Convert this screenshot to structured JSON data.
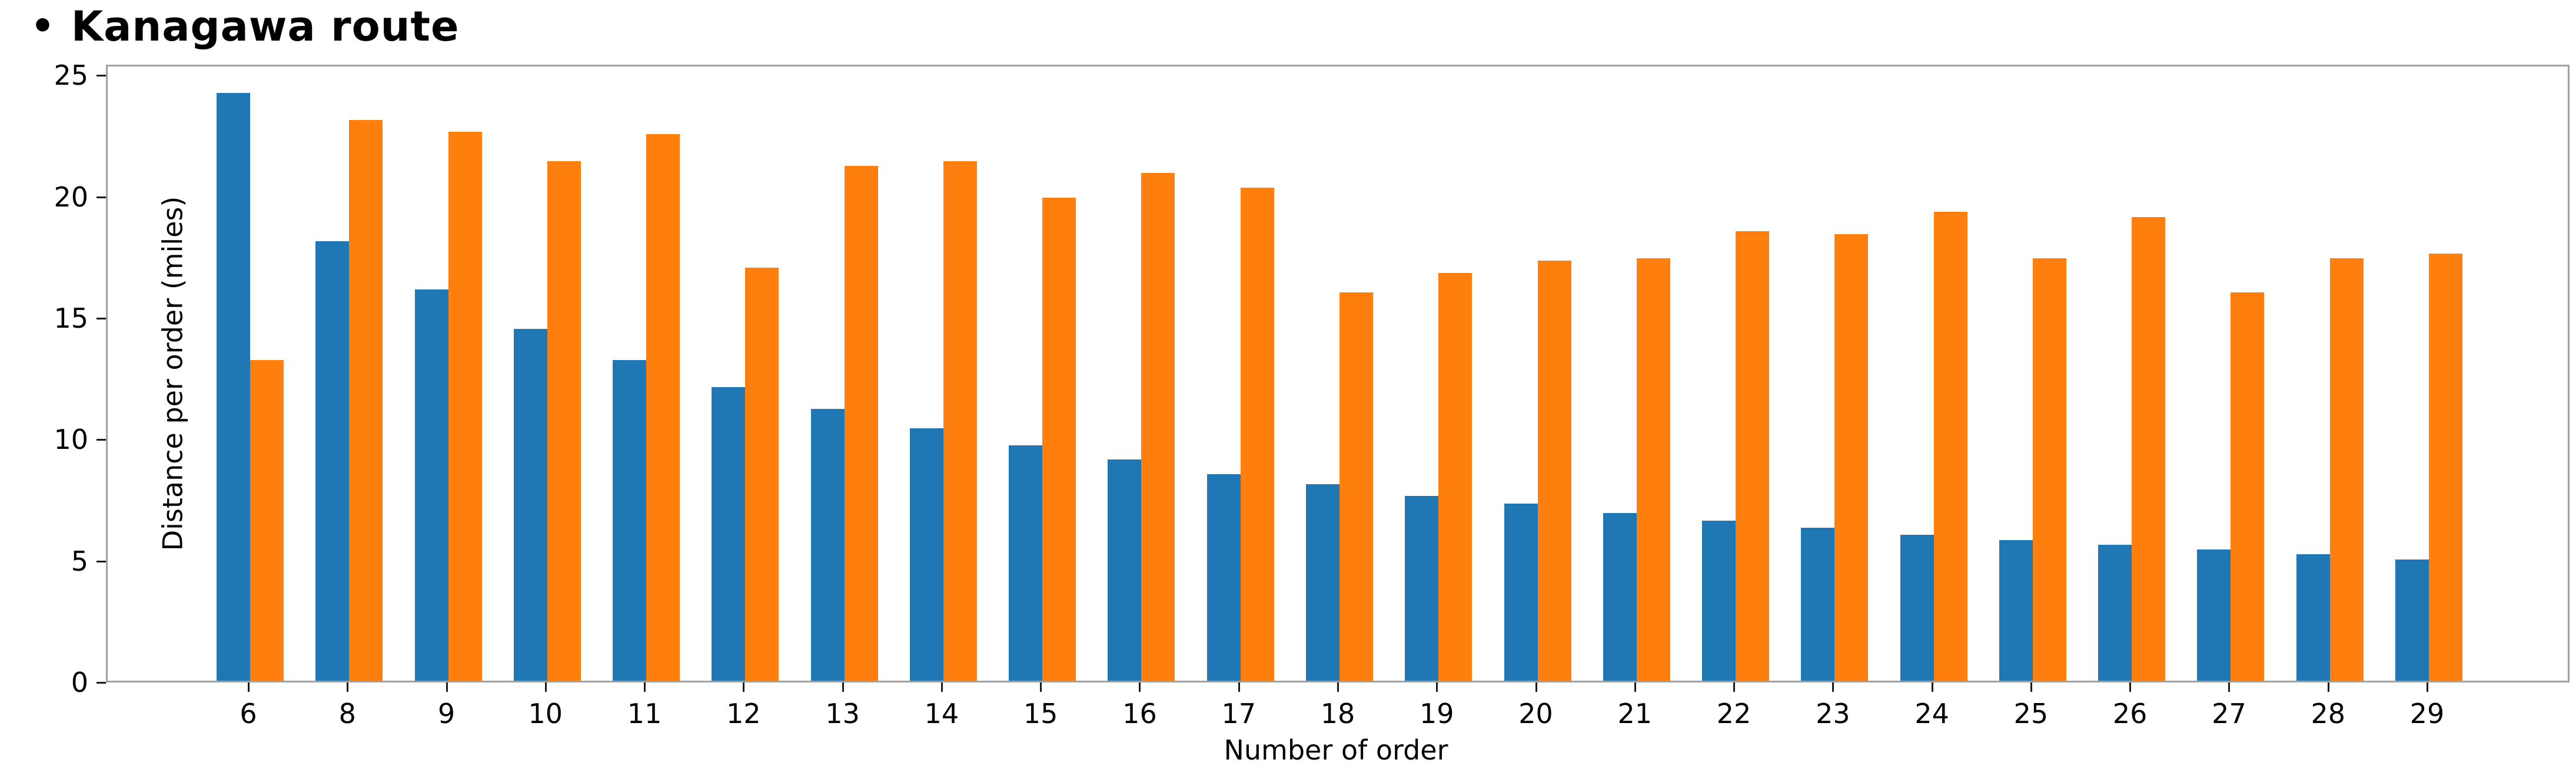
{
  "title": {
    "bullet": "•",
    "text": "Kanagawa route"
  },
  "colors": {
    "blue": "#1f77b4",
    "orange": "#ff7f0e",
    "spine": "#a0a0a0",
    "tick": "#1a1a1a"
  },
  "chart_data": {
    "type": "bar",
    "title": "Kanagawa route",
    "xlabel": "Number of order",
    "ylabel": "Distance per order (miles)",
    "categories": [
      "6",
      "8",
      "9",
      "10",
      "11",
      "12",
      "13",
      "14",
      "15",
      "16",
      "17",
      "18",
      "19",
      "20",
      "21",
      "22",
      "23",
      "24",
      "25",
      "26",
      "27",
      "28",
      "29"
    ],
    "series": [
      {
        "name": "blue",
        "color": "#1f77b4",
        "values": [
          24.2,
          18.1,
          16.1,
          14.5,
          13.2,
          12.1,
          11.2,
          10.4,
          9.7,
          9.1,
          8.5,
          8.1,
          7.6,
          7.3,
          6.9,
          6.6,
          6.3,
          6.0,
          5.8,
          5.6,
          5.4,
          5.2,
          5.0
        ]
      },
      {
        "name": "orange",
        "color": "#ff7f0e",
        "values": [
          13.2,
          23.1,
          22.6,
          21.4,
          22.5,
          17.0,
          21.2,
          21.4,
          19.9,
          20.9,
          20.3,
          16.0,
          16.8,
          17.3,
          17.4,
          18.5,
          18.4,
          19.3,
          17.4,
          19.1,
          16.0,
          17.4,
          17.6
        ]
      }
    ],
    "ylim": [
      0,
      25.44
    ],
    "yticks": [
      0,
      5,
      10,
      15,
      20,
      25
    ],
    "grid": false,
    "legend": "none"
  }
}
